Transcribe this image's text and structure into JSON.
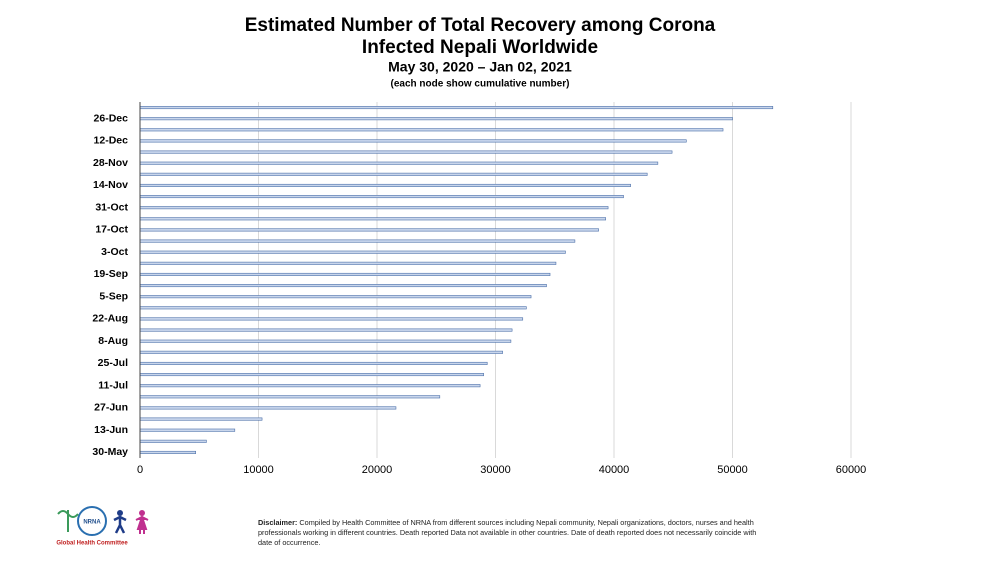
{
  "chart_data": {
    "type": "barh",
    "title": "Estimated Number of Total Recovery among Corona",
    "title_line2": "Infected Nepali Worldwide",
    "subtitle": "May 30, 2020 – Jan 02, 2021",
    "note": "(each node show cumulative number)",
    "categories": [
      "30-May",
      null,
      "13-Jun",
      null,
      "27-Jun",
      null,
      "11-Jul",
      null,
      "25-Jul",
      null,
      "8-Aug",
      null,
      "22-Aug",
      null,
      "5-Sep",
      null,
      "19-Sep",
      null,
      "3-Oct",
      null,
      "17-Oct",
      null,
      "31-Oct",
      null,
      "14-Nov",
      null,
      "28-Nov",
      null,
      "12-Dec",
      null,
      "26-Dec",
      null
    ],
    "values": [
      4700,
      5600,
      8000,
      10300,
      21600,
      25300,
      28700,
      29000,
      29300,
      30600,
      31300,
      31400,
      32300,
      32600,
      33000,
      34300,
      34600,
      35100,
      35900,
      36700,
      38700,
      39300,
      39500,
      40800,
      41400,
      42800,
      43700,
      44900,
      46100,
      49200,
      50000,
      53400
    ],
    "color": "#c9d6ec",
    "edge_color": "#4a6ea8",
    "xlim": [
      0,
      60000
    ],
    "xticks": [
      0,
      10000,
      20000,
      30000,
      40000,
      50000,
      60000
    ],
    "grid": true
  },
  "footer": {
    "logo_text": "NRNA",
    "logo_caption": "Global Health Committee",
    "disclaimer_label": "Disclaimer:",
    "disclaimer": "Compiled by Health Committee of NRNA from different sources including Nepali community, Nepali organizations, doctors, nurses and health professionals working in different countries. Death reported Data not available in other countries. Date of death reported does not necessarily coincide with date of occurrence."
  }
}
